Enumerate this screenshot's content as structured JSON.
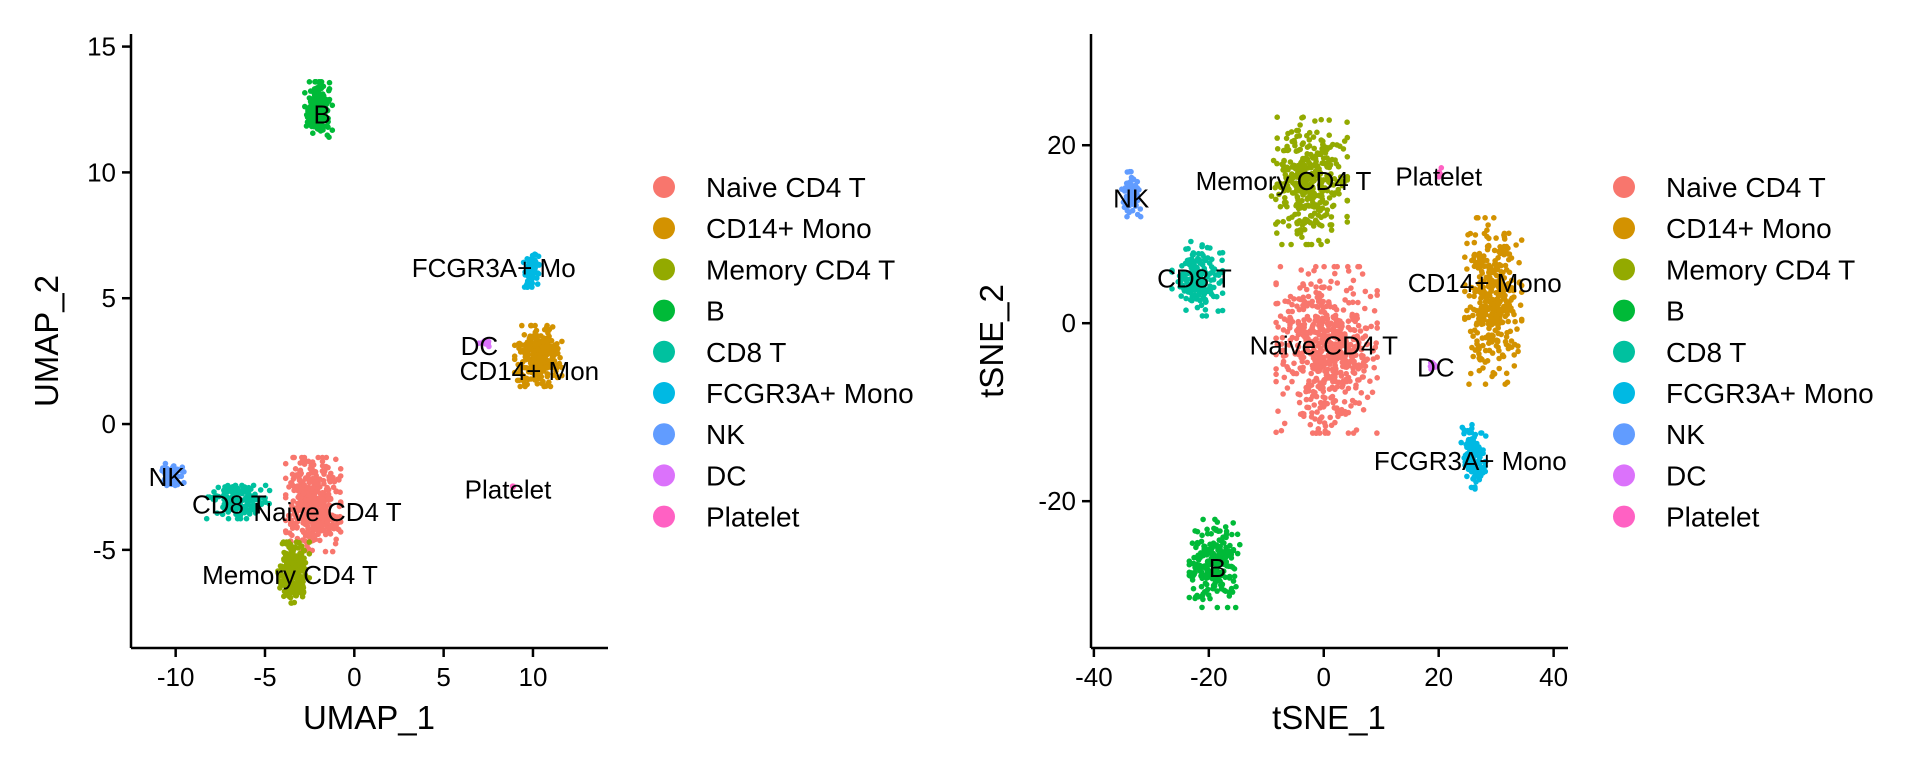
{
  "legend_colors": {
    "Naive CD4 T": "#F8766D",
    "CD14+ Mono": "#D39200",
    "Memory CD4 T": "#93AA00",
    "B": "#00BA38",
    "CD8 T": "#00C19F",
    "FCGR3A+ Mono": "#00B9E3",
    "NK": "#619CFF",
    "DC": "#DB72FB",
    "Platelet": "#FF61C3"
  },
  "chart_data": [
    {
      "type": "scatter",
      "xlabel": "UMAP_1",
      "ylabel": "UMAP_2",
      "xlim": [
        -12.5,
        14.2
      ],
      "ylim": [
        -8.9,
        15.5
      ],
      "xticks": [
        -10,
        -5,
        0,
        5,
        10
      ],
      "yticks": [
        -5,
        0,
        5,
        10,
        15
      ],
      "grid": false,
      "legend_position": "right",
      "legend": [
        "Naive CD4 T",
        "CD14+ Mono",
        "Memory CD4 T",
        "B",
        "CD8 T",
        "FCGR3A+ Mono",
        "NK",
        "DC",
        "Platelet"
      ],
      "clusters": [
        {
          "name": "Naive CD4 T",
          "label": "Naive CD4 T",
          "label_x": -1.5,
          "label_y": -3.5,
          "center": [
            -2.3,
            -3.2
          ],
          "spread": [
            1.4,
            1.7
          ],
          "n": 430
        },
        {
          "name": "CD14+ Mono",
          "label": "CD14+ Mon",
          "label_x": 9.8,
          "label_y": 2.1,
          "center": [
            10.3,
            2.7
          ],
          "spread": [
            1.2,
            1.1
          ],
          "n": 260
        },
        {
          "name": "Memory CD4 T",
          "label": "Memory CD4 T",
          "label_x": -3.6,
          "label_y": -6.0,
          "center": [
            -3.4,
            -5.9
          ],
          "spread": [
            0.8,
            1.1
          ],
          "n": 260
        },
        {
          "name": "B",
          "label": "B",
          "label_x": -1.8,
          "label_y": 12.3,
          "center": [
            -2.0,
            12.5
          ],
          "spread": [
            0.7,
            1.0
          ],
          "n": 200
        },
        {
          "name": "CD8 T",
          "label": "CD8 T",
          "label_x": -7.0,
          "label_y": -3.2,
          "center": [
            -6.5,
            -3.1
          ],
          "spread": [
            1.6,
            0.6
          ],
          "n": 150
        },
        {
          "name": "FCGR3A+ Mono",
          "label": "FCGR3A+ Mo",
          "label_x": 7.8,
          "label_y": 6.2,
          "center": [
            9.9,
            6.1
          ],
          "spread": [
            0.4,
            0.6
          ],
          "n": 90
        },
        {
          "name": "NK",
          "label": "NK",
          "label_x": -10.5,
          "label_y": -2.1,
          "center": [
            -10.2,
            -2.0
          ],
          "spread": [
            0.6,
            0.4
          ],
          "n": 70
        },
        {
          "name": "DC",
          "label": "DC",
          "label_x": 7.0,
          "label_y": 3.1,
          "center": [
            7.3,
            3.2
          ],
          "spread": [
            0.3,
            0.15
          ],
          "n": 12
        },
        {
          "name": "Platelet",
          "label": "Platelet",
          "label_x": 8.6,
          "label_y": -2.6,
          "center": [
            8.9,
            -2.5
          ],
          "spread": [
            0.05,
            0.05
          ],
          "n": 3
        }
      ]
    },
    {
      "type": "scatter",
      "xlabel": "tSNE_1",
      "ylabel": "tSNE_2",
      "xlim": [
        -40.5,
        42.5
      ],
      "ylim": [
        -36.5,
        32.5
      ],
      "xticks": [
        -40,
        -20,
        0,
        20,
        40
      ],
      "yticks": [
        -20,
        0,
        20
      ],
      "grid": false,
      "legend_position": "right",
      "legend": [
        "Naive CD4 T",
        "CD14+ Mono",
        "Memory CD4 T",
        "B",
        "CD8 T",
        "FCGR3A+ Mono",
        "NK",
        "DC",
        "Platelet"
      ],
      "clusters": [
        {
          "name": "Naive CD4 T",
          "label": "Naive CD4 T",
          "label_x": 0.0,
          "label_y": -2.5,
          "center": [
            0.5,
            -3.0
          ],
          "spread": [
            8.0,
            8.5
          ],
          "n": 600
        },
        {
          "name": "CD14+ Mono",
          "label": "CD14+ Mono",
          "label_x": 28.0,
          "label_y": 4.5,
          "center": [
            29.5,
            2.5
          ],
          "spread": [
            4.5,
            8.5
          ],
          "n": 380
        },
        {
          "name": "Memory CD4 T",
          "label": "Memory CD4 T",
          "label_x": -7.0,
          "label_y": 16.0,
          "center": [
            -2.5,
            16.0
          ],
          "spread": [
            6.0,
            6.5
          ],
          "n": 380
        },
        {
          "name": "B",
          "label": "B",
          "label_x": -18.5,
          "label_y": -27.5,
          "center": [
            -19.0,
            -27.0
          ],
          "spread": [
            4.0,
            4.5
          ],
          "n": 230
        },
        {
          "name": "CD8 T",
          "label": "CD8 T",
          "label_x": -22.5,
          "label_y": 5.0,
          "center": [
            -22.0,
            5.0
          ],
          "spread": [
            4.0,
            3.8
          ],
          "n": 180
        },
        {
          "name": "FCGR3A+ Mono",
          "label": "FCGR3A+ Mono",
          "label_x": 25.5,
          "label_y": -15.5,
          "center": [
            26.0,
            -15.0
          ],
          "spread": [
            2.0,
            3.3
          ],
          "n": 110
        },
        {
          "name": "NK",
          "label": "NK",
          "label_x": -33.5,
          "label_y": 14.0,
          "center": [
            -33.5,
            14.5
          ],
          "spread": [
            1.5,
            2.3
          ],
          "n": 80
        },
        {
          "name": "DC",
          "label": "DC",
          "label_x": 19.5,
          "label_y": -5.0,
          "center": [
            19.0,
            -4.8
          ],
          "spread": [
            0.6,
            0.5
          ],
          "n": 12
        },
        {
          "name": "Platelet",
          "label": "Platelet",
          "label_x": 20.0,
          "label_y": 16.5,
          "center": [
            20.0,
            17.0
          ],
          "spread": [
            0.5,
            0.5
          ],
          "n": 4
        }
      ]
    }
  ]
}
